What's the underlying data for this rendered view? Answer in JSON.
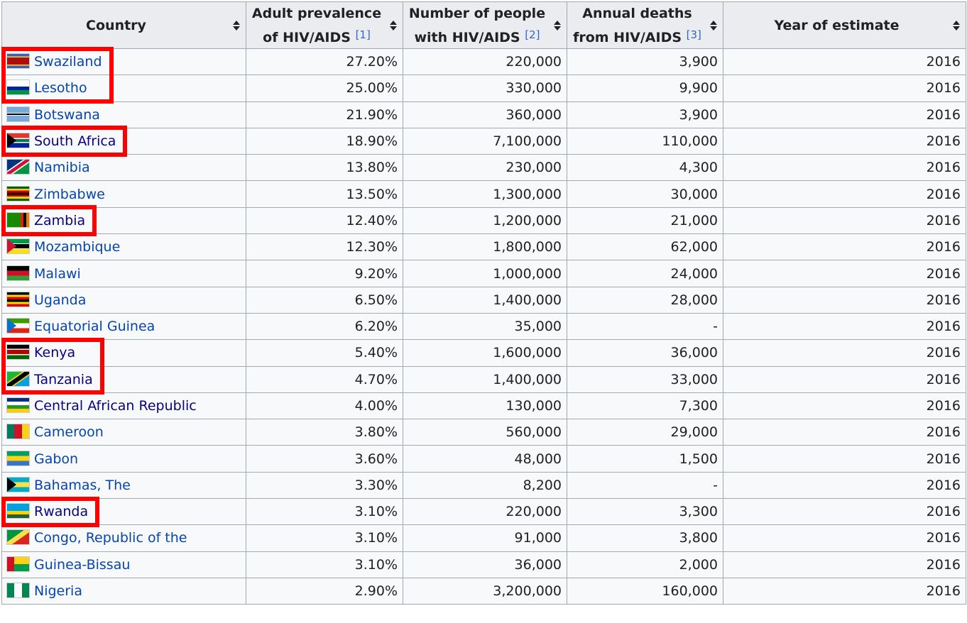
{
  "columns": [
    {
      "label": "Country",
      "ref": ""
    },
    {
      "label": "Adult prevalence of HIV/AIDS",
      "ref": "[1]"
    },
    {
      "label": "Number of people with HIV/AIDS",
      "ref": "[2]"
    },
    {
      "label": "Annual deaths from HIV/AIDS",
      "ref": "[3]"
    },
    {
      "label": "Year of estimate",
      "ref": ""
    }
  ],
  "rows": [
    {
      "country": "Swaziland",
      "prevalence": "27.20%",
      "people": "220,000",
      "deaths": "3,900",
      "year": "2016",
      "flag": "swaziland-flag-icon",
      "highlighted": true
    },
    {
      "country": "Lesotho",
      "prevalence": "25.00%",
      "people": "330,000",
      "deaths": "9,900",
      "year": "2016",
      "flag": "lesotho-flag-icon",
      "highlighted": true
    },
    {
      "country": "Botswana",
      "prevalence": "21.90%",
      "people": "360,000",
      "deaths": "3,900",
      "year": "2016",
      "flag": "botswana-flag-icon",
      "highlighted": false
    },
    {
      "country": "South Africa",
      "prevalence": "18.90%",
      "people": "7,100,000",
      "deaths": "110,000",
      "year": "2016",
      "flag": "south-africa-flag-icon",
      "highlighted": true
    },
    {
      "country": "Namibia",
      "prevalence": "13.80%",
      "people": "230,000",
      "deaths": "4,300",
      "year": "2016",
      "flag": "namibia-flag-icon",
      "highlighted": false
    },
    {
      "country": "Zimbabwe",
      "prevalence": "13.50%",
      "people": "1,300,000",
      "deaths": "30,000",
      "year": "2016",
      "flag": "zimbabwe-flag-icon",
      "highlighted": false
    },
    {
      "country": "Zambia",
      "prevalence": "12.40%",
      "people": "1,200,000",
      "deaths": "21,000",
      "year": "2016",
      "flag": "zambia-flag-icon",
      "highlighted": true
    },
    {
      "country": "Mozambique",
      "prevalence": "12.30%",
      "people": "1,800,000",
      "deaths": "62,000",
      "year": "2016",
      "flag": "mozambique-flag-icon",
      "highlighted": false
    },
    {
      "country": "Malawi",
      "prevalence": "9.20%",
      "people": "1,000,000",
      "deaths": "24,000",
      "year": "2016",
      "flag": "malawi-flag-icon",
      "highlighted": false
    },
    {
      "country": "Uganda",
      "prevalence": "6.50%",
      "people": "1,400,000",
      "deaths": "28,000",
      "year": "2016",
      "flag": "uganda-flag-icon",
      "highlighted": false
    },
    {
      "country": "Equatorial Guinea",
      "prevalence": "6.20%",
      "people": "35,000",
      "deaths": "-",
      "year": "2016",
      "flag": "equatorial-guinea-flag-icon",
      "highlighted": false
    },
    {
      "country": "Kenya",
      "prevalence": "5.40%",
      "people": "1,600,000",
      "deaths": "36,000",
      "year": "2016",
      "flag": "kenya-flag-icon",
      "highlighted": true
    },
    {
      "country": "Tanzania",
      "prevalence": "4.70%",
      "people": "1,400,000",
      "deaths": "33,000",
      "year": "2016",
      "flag": "tanzania-flag-icon",
      "highlighted": true
    },
    {
      "country": "Central African Republic",
      "prevalence": "4.00%",
      "people": "130,000",
      "deaths": "7,300",
      "year": "2016",
      "flag": "central-african-republic-flag-icon",
      "highlighted": false
    },
    {
      "country": "Cameroon",
      "prevalence": "3.80%",
      "people": "560,000",
      "deaths": "29,000",
      "year": "2016",
      "flag": "cameroon-flag-icon",
      "highlighted": false
    },
    {
      "country": "Gabon",
      "prevalence": "3.60%",
      "people": "48,000",
      "deaths": "1,500",
      "year": "2016",
      "flag": "gabon-flag-icon",
      "highlighted": false
    },
    {
      "country": "Bahamas, The",
      "prevalence": "3.30%",
      "people": "8,200",
      "deaths": "-",
      "year": "2016",
      "flag": "bahamas-flag-icon",
      "highlighted": false
    },
    {
      "country": "Rwanda",
      "prevalence": "3.10%",
      "people": "220,000",
      "deaths": "3,300",
      "year": "2016",
      "flag": "rwanda-flag-icon",
      "highlighted": true
    },
    {
      "country": "Congo, Republic of the",
      "prevalence": "3.10%",
      "people": "91,000",
      "deaths": "3,800",
      "year": "2016",
      "flag": "congo-flag-icon",
      "highlighted": false
    },
    {
      "country": "Guinea-Bissau",
      "prevalence": "3.10%",
      "people": "36,000",
      "deaths": "2,000",
      "year": "2016",
      "flag": "guinea-bissau-flag-icon",
      "highlighted": false
    },
    {
      "country": "Nigeria",
      "prevalence": "2.90%",
      "people": "3,200,000",
      "deaths": "160,000",
      "year": "2016",
      "flag": "nigeria-flag-icon",
      "highlighted": false
    }
  ],
  "colors": {
    "link": "#0645ad",
    "visited_link": "#0b0080",
    "header_bg": "#eaecf0",
    "row_bg": "#f8f9fa",
    "border": "#a2a9b1",
    "highlight": "#ff0000"
  }
}
